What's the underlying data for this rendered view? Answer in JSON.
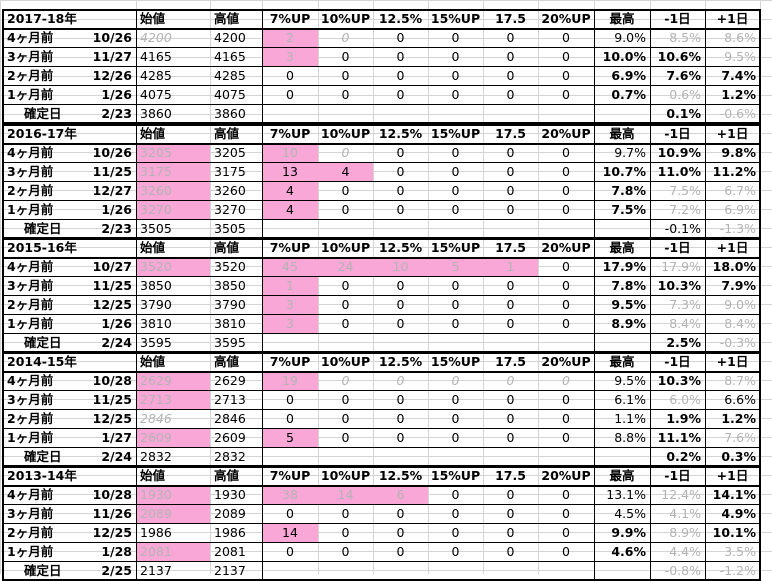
{
  "columns": [
    "始値",
    "高値",
    "7%UP",
    "10%UP",
    "12.5%",
    "15%UP",
    "17.5",
    "20%UP",
    "最高",
    "-1日",
    "+1日"
  ],
  "blocks": [
    {
      "year": "2017-18年",
      "rows": [
        {
          "label": "4ヶ月前",
          "date": "10/26",
          "start": "4200",
          "high": "4200",
          "p7": "2",
          "p10": "0",
          "p125": "0",
          "p15": "0",
          "p175": "0",
          "p20": "0",
          "max": "9.0%",
          "m1": "8.5%",
          "p1": "8.6%"
        },
        {
          "label": "3ヶ月前",
          "date": "11/27",
          "start": "4165",
          "high": "4165",
          "p7": "3",
          "p10": "0",
          "p125": "0",
          "p15": "0",
          "p175": "0",
          "p20": "0",
          "max": "10.0%",
          "m1": "10.6%",
          "p1": "9.5%"
        },
        {
          "label": "2ヶ月前",
          "date": "12/26",
          "start": "4285",
          "high": "4285",
          "p7": "0",
          "p10": "0",
          "p125": "0",
          "p15": "0",
          "p175": "0",
          "p20": "0",
          "max": "6.9%",
          "m1": "7.6%",
          "p1": "7.4%"
        },
        {
          "label": "1ヶ月前",
          "date": "1/26",
          "start": "4075",
          "high": "4075",
          "p7": "0",
          "p10": "0",
          "p125": "0",
          "p15": "0",
          "p175": "0",
          "p20": "0",
          "max": "0.7%",
          "m1": "0.6%",
          "p1": "1.2%"
        },
        {
          "label": "確定日",
          "date": "2/23",
          "start": "3860",
          "high": "3860",
          "p7": "",
          "p10": "",
          "p125": "",
          "p15": "",
          "p175": "",
          "p20": "",
          "max": "",
          "m1": "0.1%",
          "p1": "-0.6%"
        }
      ]
    },
    {
      "year": "2016-17年",
      "rows": [
        {
          "label": "4ヶ月前",
          "date": "10/26",
          "start": "3205",
          "high": "3205",
          "p7": "10",
          "p10": "0",
          "p125": "0",
          "p15": "0",
          "p175": "0",
          "p20": "0",
          "max": "9.7%",
          "m1": "10.9%",
          "p1": "9.8%"
        },
        {
          "label": "3ヶ月前",
          "date": "11/25",
          "start": "3175",
          "high": "3175",
          "p7": "13",
          "p10": "4",
          "p125": "0",
          "p15": "0",
          "p175": "0",
          "p20": "0",
          "max": "10.7%",
          "m1": "11.0%",
          "p1": "11.2%"
        },
        {
          "label": "2ヶ月前",
          "date": "12/27",
          "start": "3260",
          "high": "3260",
          "p7": "4",
          "p10": "0",
          "p125": "0",
          "p15": "0",
          "p175": "0",
          "p20": "0",
          "max": "7.8%",
          "m1": "7.5%",
          "p1": "6.7%"
        },
        {
          "label": "1ヶ月前",
          "date": "1/26",
          "start": "3270",
          "high": "3270",
          "p7": "4",
          "p10": "0",
          "p125": "0",
          "p15": "0",
          "p175": "0",
          "p20": "0",
          "max": "7.5%",
          "m1": "7.2%",
          "p1": "6.9%"
        },
        {
          "label": "確定日",
          "date": "2/23",
          "start": "3505",
          "high": "3505",
          "p7": "",
          "p10": "",
          "p125": "",
          "p15": "",
          "p175": "",
          "p20": "",
          "max": "",
          "m1": "-0.1%",
          "p1": "-1.3%"
        }
      ]
    },
    {
      "year": "2015-16年",
      "rows": [
        {
          "label": "4ヶ月前",
          "date": "10/27",
          "start": "3520",
          "high": "3520",
          "p7": "45",
          "p10": "24",
          "p125": "10",
          "p15": "5",
          "p175": "1",
          "p20": "0",
          "max": "17.9%",
          "m1": "17.9%",
          "p1": "18.0%"
        },
        {
          "label": "3ヶ月前",
          "date": "11/25",
          "start": "3850",
          "high": "3850",
          "p7": "1",
          "p10": "0",
          "p125": "0",
          "p15": "0",
          "p175": "0",
          "p20": "0",
          "max": "7.8%",
          "m1": "10.3%",
          "p1": "7.9%"
        },
        {
          "label": "2ヶ月前",
          "date": "12/25",
          "start": "3790",
          "high": "3790",
          "p7": "3",
          "p10": "0",
          "p125": "0",
          "p15": "0",
          "p175": "0",
          "p20": "0",
          "max": "9.5%",
          "m1": "7.3%",
          "p1": "9.0%"
        },
        {
          "label": "1ヶ月前",
          "date": "1/26",
          "start": "3810",
          "high": "3810",
          "p7": "3",
          "p10": "0",
          "p125": "0",
          "p15": "0",
          "p175": "0",
          "p20": "0",
          "max": "8.9%",
          "m1": "8.4%",
          "p1": "8.4%"
        },
        {
          "label": "確定日",
          "date": "2/24",
          "start": "3595",
          "high": "3595",
          "p7": "",
          "p10": "",
          "p125": "",
          "p15": "",
          "p175": "",
          "p20": "",
          "max": "",
          "m1": "2.5%",
          "p1": "-0.3%"
        }
      ]
    },
    {
      "year": "2014-15年",
      "rows": [
        {
          "label": "4ヶ月前",
          "date": "10/28",
          "start": "2629",
          "high": "2629",
          "p7": "19",
          "p10": "0",
          "p125": "0",
          "p15": "0",
          "p175": "0",
          "p20": "0",
          "max": "9.5%",
          "m1": "10.3%",
          "p1": "8.7%"
        },
        {
          "label": "3ヶ月前",
          "date": "11/25",
          "start": "2713",
          "high": "2713",
          "p7": "0",
          "p10": "0",
          "p125": "0",
          "p15": "0",
          "p175": "0",
          "p20": "0",
          "max": "6.1%",
          "m1": "6.0%",
          "p1": "6.6%"
        },
        {
          "label": "2ヶ月前",
          "date": "12/25",
          "start": "2846",
          "high": "2846",
          "p7": "0",
          "p10": "0",
          "p125": "0",
          "p15": "0",
          "p175": "0",
          "p20": "0",
          "max": "1.1%",
          "m1": "1.9%",
          "p1": "1.2%"
        },
        {
          "label": "1ヶ月前",
          "date": "1/27",
          "start": "2609",
          "high": "2609",
          "p7": "5",
          "p10": "0",
          "p125": "0",
          "p15": "0",
          "p175": "0",
          "p20": "0",
          "max": "8.8%",
          "m1": "11.1%",
          "p1": "7.6%"
        },
        {
          "label": "確定日",
          "date": "2/24",
          "start": "2832",
          "high": "2832",
          "p7": "",
          "p10": "",
          "p125": "",
          "p15": "",
          "p175": "",
          "p20": "",
          "max": "",
          "m1": "0.2%",
          "p1": "0.3%"
        }
      ]
    },
    {
      "year": "2013-14年",
      "rows": [
        {
          "label": "4ヶ月前",
          "date": "10/28",
          "start": "1930",
          "high": "1930",
          "p7": "38",
          "p10": "14",
          "p125": "6",
          "p15": "0",
          "p175": "0",
          "p20": "0",
          "max": "13.1%",
          "m1": "12.4%",
          "p1": "14.1%"
        },
        {
          "label": "3ヶ月前",
          "date": "11/26",
          "start": "2089",
          "high": "2089",
          "p7": "0",
          "p10": "0",
          "p125": "0",
          "p15": "0",
          "p175": "0",
          "p20": "0",
          "max": "4.5%",
          "m1": "4.1%",
          "p1": "4.9%"
        },
        {
          "label": "2ヶ月前",
          "date": "12/25",
          "start": "1986",
          "high": "1986",
          "p7": "14",
          "p10": "0",
          "p125": "0",
          "p15": "0",
          "p175": "0",
          "p20": "0",
          "max": "9.9%",
          "m1": "8.9%",
          "p1": "10.1%"
        },
        {
          "label": "1ヶ月前",
          "date": "1/28",
          "start": "2081",
          "high": "2081",
          "p7": "0",
          "p10": "0",
          "p125": "0",
          "p15": "0",
          "p175": "0",
          "p20": "0",
          "max": "4.6%",
          "m1": "4.4%",
          "p1": "3.5%"
        },
        {
          "label": "確定日",
          "date": "2/25",
          "start": "2137",
          "high": "2137",
          "p7": "",
          "p10": "",
          "p125": "",
          "p15": "",
          "p175": "",
          "p20": "",
          "max": "",
          "m1": "-0.8%",
          "p1": "-1.2%"
        }
      ]
    }
  ]
}
